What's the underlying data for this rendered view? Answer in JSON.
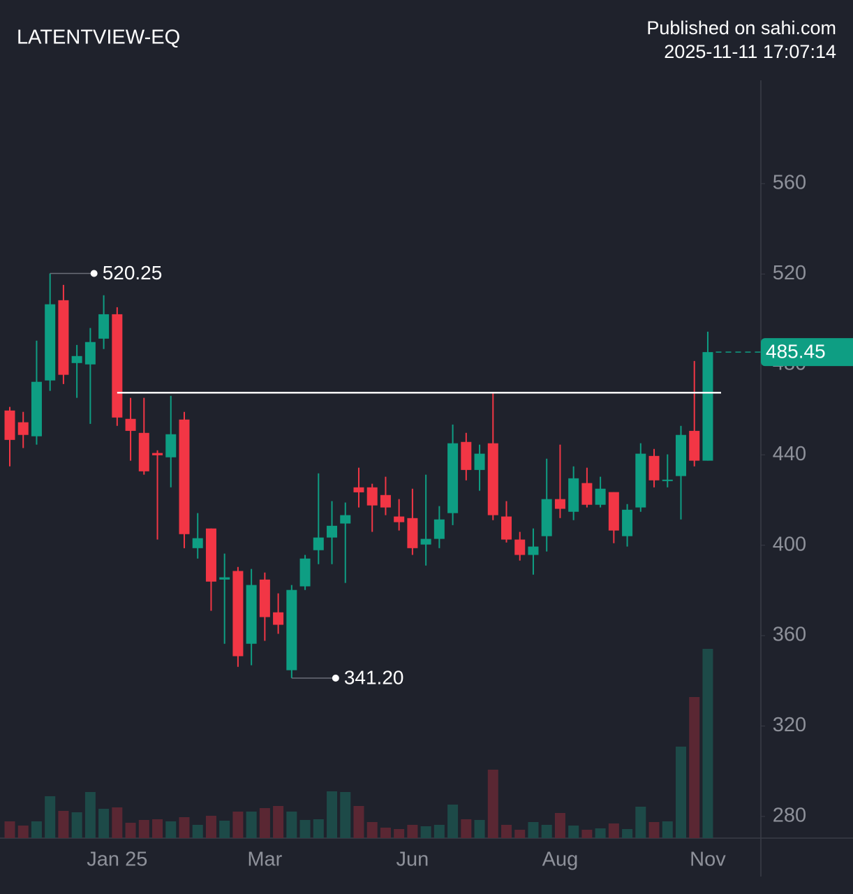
{
  "header": {
    "title": "LATENTVIEW-EQ",
    "published": "Published on sahi.com",
    "timestamp": "2025-11-11 17:07:14"
  },
  "chart_data": {
    "type": "candlestick",
    "up_color": "#0e9e83",
    "down_color": "#f23645",
    "volume_up_color": "#1d4a48",
    "volume_down_color": "#5a2733",
    "categories": [
      null,
      null,
      null,
      null,
      null,
      null,
      null,
      null,
      "Jan 25",
      null,
      null,
      null,
      null,
      null,
      null,
      null,
      null,
      null,
      null,
      "Mar",
      null,
      null,
      null,
      null,
      null,
      null,
      null,
      null,
      null,
      null,
      "Jun",
      null,
      null,
      null,
      null,
      null,
      null,
      null,
      null,
      null,
      null,
      "Aug",
      null,
      null,
      null,
      null,
      null,
      null,
      null,
      null,
      null,
      null,
      "Nov"
    ],
    "open": [
      459.6,
      454.4,
      448.2,
      472.9,
      508.4,
      480.6,
      480.0,
      491.4,
      502.2,
      455.9,
      449.7,
      440.8,
      438.9,
      455.6,
      398.7,
      407.4,
      384.8,
      388.6,
      356.4,
      384.8,
      370.3,
      344.7,
      381.8,
      397.8,
      403.4,
      409.6,
      425.6,
      425.6,
      422.2,
      412.7,
      412.0,
      400.3,
      402.8,
      414.2,
      445.7,
      433.3,
      445.1,
      412.7,
      402.5,
      395.7,
      404.0,
      420.4,
      414.8,
      427.5,
      417.9,
      423.5,
      404.0,
      416.7,
      439.5,
      428.7,
      430.6,
      450.6,
      437.4
    ],
    "high": [
      461.2,
      459.0,
      490.5,
      520.25,
      515.2,
      488.6,
      496.1,
      510.6,
      505.3,
      465.2,
      465.2,
      442.0,
      466.1,
      459.0,
      414.2,
      407.4,
      396.3,
      390.4,
      389.5,
      387.9,
      378.7,
      382.4,
      395.7,
      431.8,
      419.5,
      418.9,
      434.3,
      427.2,
      430.3,
      420.4,
      425.0,
      431.2,
      417.3,
      453.4,
      449.7,
      444.5,
      467.6,
      419.5,
      405.9,
      407.4,
      438.3,
      444.5,
      434.9,
      434.3,
      430.3,
      423.5,
      418.2,
      445.1,
      442.6,
      440.2,
      452.8,
      481.5,
      494.5
    ],
    "low": [
      434.9,
      443.0,
      444.5,
      468.3,
      471.3,
      465.2,
      453.7,
      486.8,
      452.8,
      437.4,
      431.2,
      402.5,
      425.6,
      398.7,
      394.1,
      371.0,
      356.4,
      346.2,
      346.9,
      357.7,
      360.8,
      341.2,
      380.2,
      391.6,
      391.6,
      383.3,
      416.7,
      405.9,
      413.3,
      406.5,
      395.7,
      391.0,
      398.7,
      408.9,
      428.7,
      424.1,
      411.1,
      401.2,
      393.2,
      387.0,
      397.2,
      412.0,
      411.1,
      416.7,
      416.7,
      400.9,
      399.4,
      414.8,
      425.6,
      425.6,
      411.4,
      434.9,
      437.4
    ],
    "close": [
      446.6,
      448.8,
      472.3,
      506.6,
      475.4,
      483.7,
      489.9,
      502.2,
      456.5,
      450.6,
      432.7,
      439.8,
      449.1,
      404.9,
      403.1,
      383.9,
      385.8,
      350.9,
      382.4,
      368.2,
      364.8,
      380.2,
      394.1,
      403.4,
      408.6,
      413.3,
      423.4,
      417.6,
      416.7,
      410.2,
      398.7,
      402.8,
      411.4,
      445.1,
      433.3,
      440.5,
      413.3,
      402.5,
      395.7,
      399.4,
      420.4,
      416.1,
      429.6,
      417.9,
      425.0,
      406.5,
      415.7,
      440.5,
      428.7,
      429.0,
      448.8,
      437.4,
      485.45
    ],
    "volume": [
      24,
      18,
      24,
      60,
      39,
      37,
      66,
      42,
      44,
      22,
      26,
      27,
      24,
      30,
      19,
      32,
      25,
      38,
      38,
      43,
      46,
      38,
      26,
      27,
      67,
      66,
      46,
      23,
      15,
      13,
      19,
      17,
      19,
      48,
      27,
      26,
      98,
      19,
      12,
      23,
      19,
      36,
      18,
      12,
      14,
      21,
      13,
      45,
      23,
      24,
      131,
      202,
      271
    ],
    "ylim": [
      270.4,
      605.7
    ],
    "yticks": [
      280,
      320,
      360,
      400,
      440,
      480,
      520,
      560
    ],
    "annotations": [
      {
        "value": 520.25,
        "label": "520.25"
      },
      {
        "value": 341.2,
        "label": "341.20"
      }
    ],
    "hline": {
      "value": 467.5,
      "color": "#ffffff"
    },
    "last_price": 485.45
  }
}
